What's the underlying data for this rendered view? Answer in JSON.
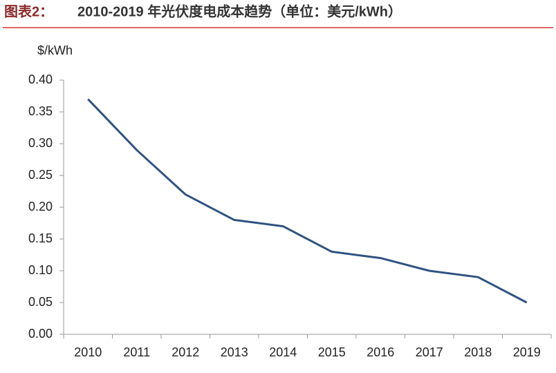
{
  "chart_data": {
    "type": "line",
    "label": "图表2：",
    "title": "2010-2019 年光伏度电成本趋势（单位：美元/kWh）",
    "y_axis_label": "$/kWh",
    "categories": [
      "2010",
      "2011",
      "2012",
      "2013",
      "2014",
      "2015",
      "2016",
      "2017",
      "2018",
      "2019"
    ],
    "series": [
      {
        "color": "#2f5282",
        "values": [
          0.37,
          0.29,
          0.22,
          0.18,
          0.17,
          0.13,
          0.12,
          0.1,
          0.09,
          0.05
        ]
      }
    ],
    "ylim": [
      0,
      0.4
    ],
    "yticks": [
      {
        "value": 0,
        "label": "0.00"
      },
      {
        "value": 0.05,
        "label": "0.05"
      },
      {
        "value": 0.1,
        "label": "0.10"
      },
      {
        "value": 0.15,
        "label": "0.15"
      },
      {
        "value": 0.2,
        "label": "0.20"
      },
      {
        "value": 0.25,
        "label": "0.25"
      },
      {
        "value": 0.3,
        "label": "0.30"
      },
      {
        "value": 0.35,
        "label": "0.35"
      },
      {
        "value": 0.4,
        "label": "0.40"
      }
    ]
  }
}
